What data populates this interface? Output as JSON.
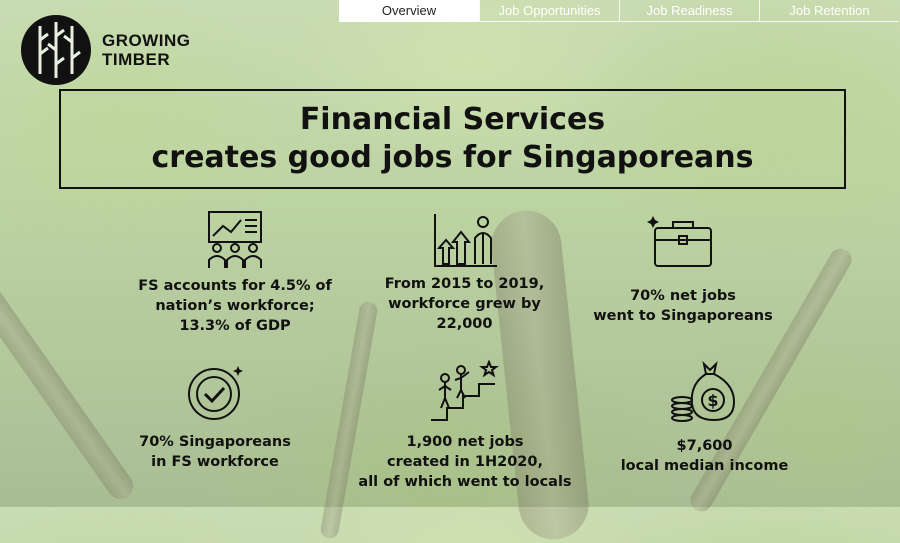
{
  "nav": {
    "tabs": [
      {
        "label": "Overview",
        "active": true
      },
      {
        "label": "Job Opportunities",
        "active": false
      },
      {
        "label": "Job Readiness",
        "active": false
      },
      {
        "label": "Job Retention",
        "active": false
      }
    ]
  },
  "logo": {
    "line1": "GROWING",
    "line2": "TIMBER",
    "icon": "growing-timber-logo"
  },
  "title": {
    "line1": "Financial Services",
    "line2": "creates good jobs for Singaporeans"
  },
  "stats": [
    {
      "icon": "presentation-audience-icon",
      "lines": [
        "FS accounts for 4.5% of",
        "nation’s workforce;",
        "13.3% of GDP"
      ]
    },
    {
      "icon": "growth-chart-person-icon",
      "lines": [
        "From 2015 to 2019,",
        "workforce grew by",
        "22,000"
      ]
    },
    {
      "icon": "briefcase-icon",
      "lines": [
        "70% net jobs",
        "went to Singaporeans"
      ]
    },
    {
      "icon": "checkmark-badge-icon",
      "lines": [
        "70% Singaporeans",
        "in FS workforce"
      ]
    },
    {
      "icon": "people-climbing-stairs-icon",
      "lines": [
        "1,900 net jobs",
        "created in 1H2020,",
        "all of which went to locals"
      ]
    },
    {
      "icon": "money-bag-coins-icon",
      "lines": [
        "$7,600",
        "local median income"
      ]
    }
  ],
  "colors": {
    "text": "#111111",
    "nav_text": "#ffffff",
    "nav_active_bg": "#ffffff",
    "background": "#bcd3a2"
  }
}
